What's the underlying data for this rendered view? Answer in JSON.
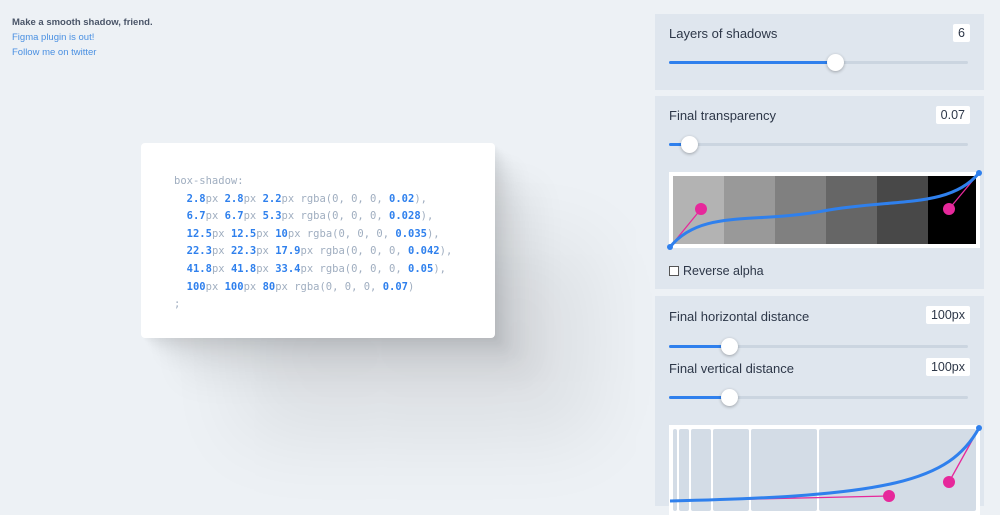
{
  "intro": {
    "tagline": "Make a smooth shadow, friend.",
    "figma_link": "Figma plugin is out!",
    "twitter_link": "Follow me on twitter"
  },
  "code": {
    "header": "box-shadow:",
    "footer": ";",
    "rows": [
      {
        "x": "2.8",
        "y": "2.8",
        "blur": "2.2",
        "alpha": "0.02"
      },
      {
        "x": "6.7",
        "y": "6.7",
        "blur": "5.3",
        "alpha": "0.028"
      },
      {
        "x": "12.5",
        "y": "12.5",
        "blur": "10",
        "alpha": "0.035"
      },
      {
        "x": "22.3",
        "y": "22.3",
        "blur": "17.9",
        "alpha": "0.042"
      },
      {
        "x": "41.8",
        "y": "41.8",
        "blur": "33.4",
        "alpha": "0.05"
      },
      {
        "x": "100",
        "y": "100",
        "blur": "80",
        "alpha": "0.07"
      }
    ],
    "unit": "px",
    "rgba_prefix": "rgba(0, 0, 0, "
  },
  "layers": {
    "label": "Layers of shadows",
    "value": "6",
    "fraction": 0.556
  },
  "transparency": {
    "label": "Final transparency",
    "value": "0.07",
    "fraction": 0.067,
    "reverse_alpha_label": "Reverse alpha",
    "reverse_alpha_checked": false
  },
  "horizontal": {
    "label": "Final horizontal distance",
    "value": "100px",
    "fraction": 0.2
  },
  "vertical": {
    "label": "Final vertical distance",
    "value": "100px",
    "fraction": 0.2
  },
  "colors": {
    "accent": "#2f80ed",
    "handle": "#e6289b",
    "panel": "#dfe6ee",
    "background": "#edf1f5"
  }
}
